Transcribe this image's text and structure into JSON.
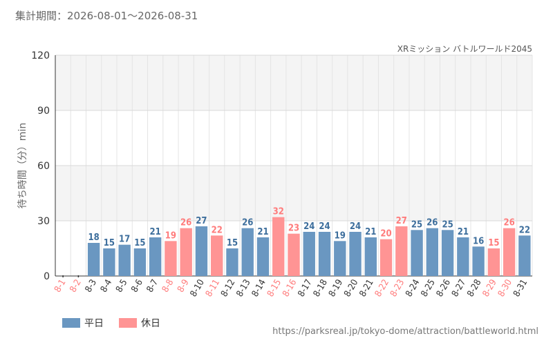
{
  "header": {
    "period": "集計期間：2026-08-01～2026-08-31"
  },
  "footer": {
    "source": "https://parksreal.jp/tokyo-dome/attraction/battleworld.html"
  },
  "colors": {
    "weekday": "#6a97c1",
    "holiday": "#ff9494",
    "weekday_text": "#3d6e9c",
    "holiday_text": "#ff7b7b"
  },
  "chart_data": {
    "type": "bar",
    "title": "XRミッション バトルワールド2045",
    "ylabel": "待ち時間（分）min",
    "xlabel": "",
    "ylim": [
      0,
      120
    ],
    "yticks": [
      0,
      30,
      60,
      90,
      120
    ],
    "grid": true,
    "legend_position": "bottom-left",
    "categories": [
      "8-1",
      "8-2",
      "8-3",
      "8-4",
      "8-5",
      "8-6",
      "8-7",
      "8-8",
      "8-9",
      "8-10",
      "8-11",
      "8-12",
      "8-13",
      "8-14",
      "8-15",
      "8-16",
      "8-17",
      "8-18",
      "8-19",
      "8-20",
      "8-21",
      "8-22",
      "8-23",
      "8-24",
      "8-25",
      "8-26",
      "8-27",
      "8-28",
      "8-29",
      "8-30",
      "8-31"
    ],
    "values": [
      null,
      null,
      18,
      15,
      17,
      15,
      21,
      19,
      26,
      27,
      22,
      15,
      26,
      21,
      32,
      23,
      24,
      24,
      19,
      24,
      21,
      20,
      27,
      25,
      26,
      25,
      21,
      16,
      15,
      26,
      22
    ],
    "day_type": [
      "holiday",
      "holiday",
      "weekday",
      "weekday",
      "weekday",
      "weekday",
      "weekday",
      "holiday",
      "holiday",
      "weekday",
      "holiday",
      "weekday",
      "weekday",
      "weekday",
      "holiday",
      "holiday",
      "weekday",
      "weekday",
      "weekday",
      "weekday",
      "weekday",
      "holiday",
      "holiday",
      "weekday",
      "weekday",
      "weekday",
      "weekday",
      "weekday",
      "holiday",
      "holiday",
      "weekday"
    ],
    "series": [
      {
        "key": "weekday",
        "name": "平日"
      },
      {
        "key": "holiday",
        "name": "休日"
      }
    ]
  }
}
